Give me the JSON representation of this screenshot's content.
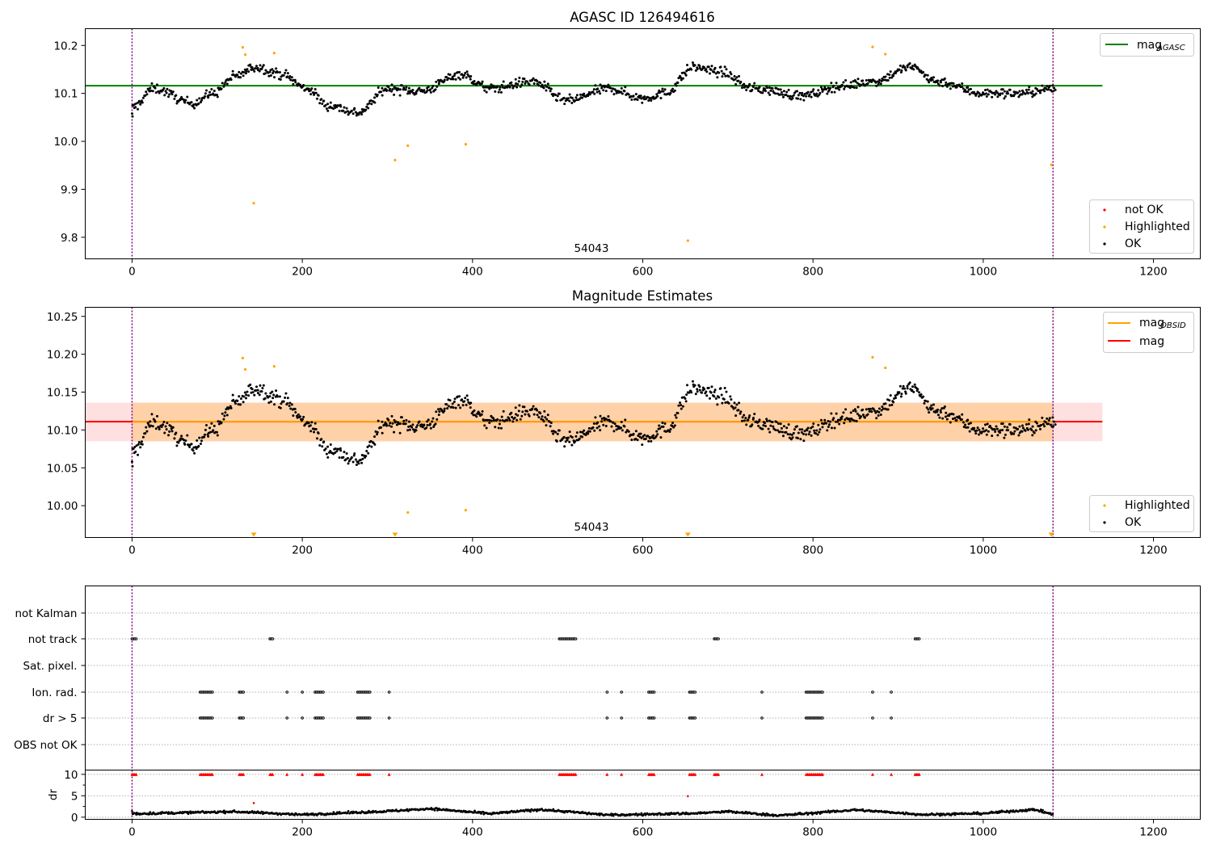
{
  "figure": {
    "title": "AGASC ID 126494616"
  },
  "chart_data": [
    {
      "id": "agasc",
      "type": "scatter",
      "title": "AGASC ID 126494616",
      "xlim": [
        -55,
        1255
      ],
      "ylim": [
        9.755,
        10.235
      ],
      "x_ticks": [
        0,
        200,
        400,
        600,
        800,
        1000,
        1200
      ],
      "y_ticks": [
        9.8,
        9.9,
        10.0,
        10.1,
        10.2
      ],
      "y_tick_labels": [
        "9.8",
        "9.9",
        "10.0",
        "10.1",
        "10.2"
      ],
      "obsid_label": "54043",
      "legend_top": [
        {
          "label": "mag",
          "sub": "AGASC",
          "color": "#008000",
          "kind": "line"
        }
      ],
      "legend_bottom": [
        {
          "label": "not OK",
          "color": "#ff0000",
          "kind": "dot"
        },
        {
          "label": "Highlighted",
          "color": "#ffa500",
          "kind": "dot"
        },
        {
          "label": "OK",
          "color": "#000000",
          "kind": "dot"
        }
      ],
      "mag_agasc": 10.116,
      "vlines_x": [
        0,
        1082
      ],
      "highlighted": [
        [
          130,
          10.196
        ],
        [
          133,
          10.181
        ],
        [
          143,
          9.871
        ],
        [
          167,
          10.184
        ],
        [
          309,
          9.961
        ],
        [
          324,
          9.991
        ],
        [
          392,
          9.994
        ],
        [
          653,
          9.793
        ],
        [
          870,
          10.197
        ],
        [
          885,
          10.182
        ],
        [
          1080,
          9.951
        ]
      ],
      "ok_series_key": "lightcurve"
    },
    {
      "id": "estimates",
      "type": "scatter",
      "title": "Magnitude Estimates",
      "xlim": [
        -55,
        1255
      ],
      "ylim": [
        9.958,
        10.262
      ],
      "x_ticks": [
        0,
        200,
        400,
        600,
        800,
        1000,
        1200
      ],
      "y_ticks": [
        10.0,
        10.05,
        10.1,
        10.15,
        10.2,
        10.25
      ],
      "y_tick_labels": [
        "10.00",
        "10.05",
        "10.10",
        "10.15",
        "10.20",
        "10.25"
      ],
      "obsid_label": "54043",
      "legend_top": [
        {
          "label": "mag",
          "sub": "OBSID",
          "color": "#ffa500",
          "kind": "line"
        },
        {
          "label": "mag",
          "color": "#ff0000",
          "kind": "line"
        }
      ],
      "legend_bottom": [
        {
          "label": "Highlighted",
          "color": "#ffa500",
          "kind": "dot"
        },
        {
          "label": "OK",
          "color": "#000000",
          "kind": "dot"
        }
      ],
      "mag_mean": 10.111,
      "mag_band": [
        10.085,
        10.136
      ],
      "obsid_band": [
        10.085,
        10.136
      ],
      "band_x": [
        -55,
        1140
      ],
      "vlines_x": [
        0,
        1082
      ],
      "highlighted": [
        [
          130,
          10.195
        ],
        [
          133,
          10.18
        ],
        [
          167,
          10.184
        ],
        [
          324,
          9.991
        ],
        [
          392,
          9.994
        ],
        [
          870,
          10.196
        ],
        [
          885,
          10.182
        ]
      ],
      "off_scale_markers_x": [
        143,
        309,
        653,
        1080
      ]
    },
    {
      "id": "flags",
      "type": "scatter",
      "xlim": [
        -55,
        1255
      ],
      "categories": [
        "not Kalman",
        "not track",
        "Sat. pixel.",
        "Ion. rad.",
        "dr > 5",
        "OBS not OK"
      ],
      "flag_ranges": {
        "not track": [
          [
            0,
            6
          ],
          [
            162,
            166
          ],
          [
            502,
            522
          ],
          [
            684,
            690
          ],
          [
            920,
            925
          ]
        ],
        "Ion. rad.": [
          [
            80,
            95
          ],
          [
            126,
            132
          ],
          [
            182,
            182
          ],
          [
            200,
            200
          ],
          [
            215,
            225
          ],
          [
            265,
            280
          ],
          [
            302,
            302
          ],
          [
            558,
            558
          ],
          [
            575,
            575
          ],
          [
            607,
            615
          ],
          [
            655,
            662
          ],
          [
            740,
            740
          ],
          [
            792,
            812
          ],
          [
            870,
            870
          ],
          [
            892,
            892
          ]
        ],
        "dr > 5": [
          [
            80,
            95
          ],
          [
            126,
            132
          ],
          [
            182,
            182
          ],
          [
            200,
            200
          ],
          [
            215,
            225
          ],
          [
            265,
            280
          ],
          [
            302,
            302
          ],
          [
            558,
            558
          ],
          [
            575,
            575
          ],
          [
            607,
            615
          ],
          [
            655,
            662
          ],
          [
            740,
            740
          ],
          [
            792,
            812
          ],
          [
            870,
            870
          ],
          [
            892,
            892
          ]
        ]
      },
      "vlines_x": [
        0,
        1082
      ]
    },
    {
      "id": "dr",
      "type": "scatter",
      "xlim": [
        -55,
        1255
      ],
      "ylim": [
        -0.5,
        11
      ],
      "ylabel": "dr",
      "x_ticks": [
        0,
        200,
        400,
        600,
        800,
        1000,
        1200
      ],
      "y_ticks": [
        0,
        5,
        10
      ],
      "y_tick_labels": [
        "0",
        "5",
        "10"
      ],
      "outliers": [
        [
          143,
          3.3
        ],
        [
          653,
          4.9
        ],
        [
          0,
          1.4
        ]
      ],
      "vlines_x": [
        0,
        1082
      ]
    }
  ],
  "lightcurve": {
    "segments": [
      {
        "x": [
          0,
          25
        ],
        "y": [
          10.07,
          10.11
        ]
      },
      {
        "x": [
          25,
          70
        ],
        "y": [
          10.11,
          10.08
        ]
      },
      {
        "x": [
          70,
          95
        ],
        "y": [
          10.08,
          10.1
        ]
      },
      {
        "x": [
          95,
          120
        ],
        "y": [
          10.1,
          10.135
        ]
      },
      {
        "x": [
          120,
          145
        ],
        "y": [
          10.135,
          10.155
        ]
      },
      {
        "x": [
          145,
          175
        ],
        "y": [
          10.155,
          10.14
        ]
      },
      {
        "x": [
          175,
          205
        ],
        "y": [
          10.14,
          10.11
        ]
      },
      {
        "x": [
          205,
          230
        ],
        "y": [
          10.11,
          10.075
        ]
      },
      {
        "x": [
          230,
          265
        ],
        "y": [
          10.075,
          10.06
        ]
      },
      {
        "x": [
          265,
          300
        ],
        "y": [
          10.06,
          10.11
        ]
      },
      {
        "x": [
          300,
          340
        ],
        "y": [
          10.11,
          10.105
        ]
      },
      {
        "x": [
          340,
          385
        ],
        "y": [
          10.105,
          10.14
        ]
      },
      {
        "x": [
          385,
          420
        ],
        "y": [
          10.14,
          10.11
        ]
      },
      {
        "x": [
          420,
          470
        ],
        "y": [
          10.11,
          10.125
        ]
      },
      {
        "x": [
          470,
          510
        ],
        "y": [
          10.125,
          10.085
        ]
      },
      {
        "x": [
          510,
          560
        ],
        "y": [
          10.085,
          10.11
        ]
      },
      {
        "x": [
          560,
          600
        ],
        "y": [
          10.11,
          10.09
        ]
      },
      {
        "x": [
          600,
          625
        ],
        "y": [
          10.09,
          10.1
        ]
      },
      {
        "x": [
          625,
          660
        ],
        "y": [
          10.1,
          10.155
        ]
      },
      {
        "x": [
          660,
          690
        ],
        "y": [
          10.155,
          10.145
        ]
      },
      {
        "x": [
          690,
          730
        ],
        "y": [
          10.145,
          10.11
        ]
      },
      {
        "x": [
          730,
          790
        ],
        "y": [
          10.11,
          10.095
        ]
      },
      {
        "x": [
          790,
          830
        ],
        "y": [
          10.095,
          10.115
        ]
      },
      {
        "x": [
          830,
          870
        ],
        "y": [
          10.115,
          10.125
        ]
      },
      {
        "x": [
          870,
          915
        ],
        "y": [
          10.125,
          10.155
        ]
      },
      {
        "x": [
          915,
          945
        ],
        "y": [
          10.155,
          10.125
        ]
      },
      {
        "x": [
          945,
          1000
        ],
        "y": [
          10.125,
          10.1
        ]
      },
      {
        "x": [
          1000,
          1040
        ],
        "y": [
          10.1,
          10.1
        ]
      },
      {
        "x": [
          1040,
          1085
        ],
        "y": [
          10.1,
          10.11
        ]
      }
    ],
    "points_per_unit": 1,
    "scatter_amplitude": 0.018,
    "gap_ranges": [
      [
        1087,
        1140
      ]
    ],
    "dr_baseline": [
      [
        0,
        0.8
      ],
      [
        120,
        1.3
      ],
      [
        200,
        0.6
      ],
      [
        300,
        1.4
      ],
      [
        350,
        2.0
      ],
      [
        420,
        0.8
      ],
      [
        480,
        1.8
      ],
      [
        560,
        0.5
      ],
      [
        660,
        0.9
      ],
      [
        700,
        1.3
      ],
      [
        760,
        0.4
      ],
      [
        850,
        1.7
      ],
      [
        930,
        0.6
      ],
      [
        1000,
        0.9
      ],
      [
        1060,
        1.8
      ],
      [
        1082,
        0.6
      ]
    ]
  }
}
